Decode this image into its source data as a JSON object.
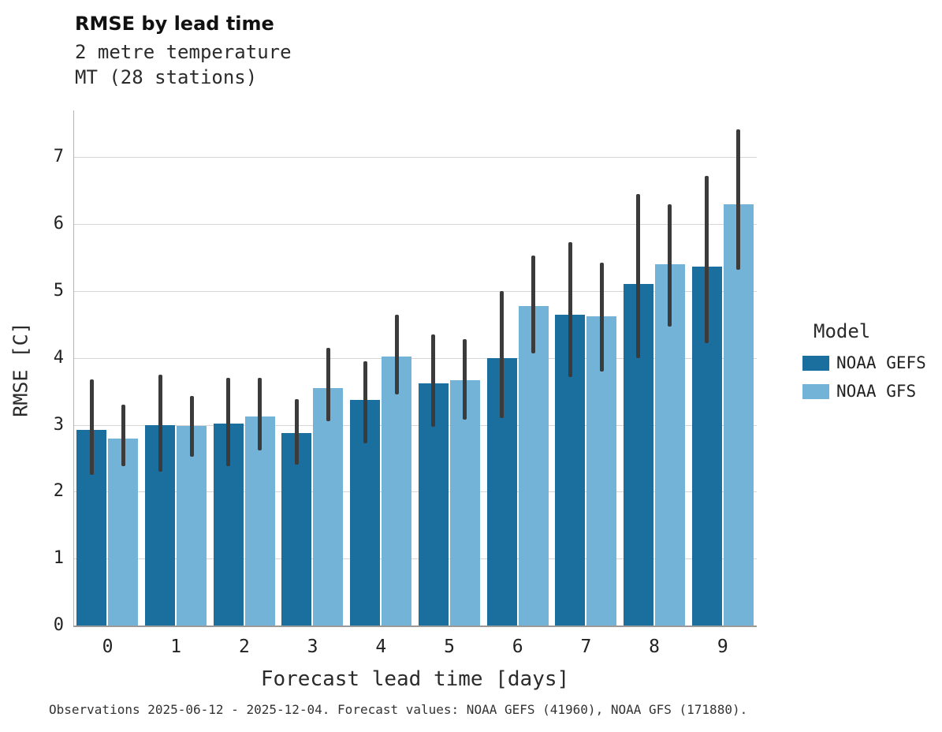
{
  "header": {
    "title": "RMSE by lead time",
    "subtitle1": "2 metre temperature",
    "subtitle2": "MT (28 stations)"
  },
  "legend": {
    "title": "Model",
    "entries": [
      {
        "label": "NOAA GEFS",
        "color": "#1b6f9e"
      },
      {
        "label": "NOAA GFS",
        "color": "#74b3d8"
      }
    ]
  },
  "footer": {
    "caption": "Observations 2025-06-12 - 2025-12-04. Forecast values: NOAA GEFS (41960), NOAA GFS (171880)."
  },
  "chart_data": {
    "type": "bar",
    "title": "RMSE by lead time",
    "subtitle": "2 metre temperature, MT (28 stations)",
    "xlabel": "Forecast lead time [days]",
    "ylabel": "RMSE [C]",
    "categories": [
      "0",
      "1",
      "2",
      "3",
      "4",
      "5",
      "6",
      "7",
      "8",
      "9"
    ],
    "ylim": [
      0,
      7.7
    ],
    "yticks": [
      0,
      1,
      2,
      3,
      4,
      5,
      6,
      7
    ],
    "grid": "horizontal",
    "legend_position": "right",
    "error_bar_color": "#3b3b3b",
    "series": [
      {
        "name": "NOAA GEFS",
        "color": "#1b6f9e",
        "values": [
          2.93,
          3.0,
          3.02,
          2.88,
          3.37,
          3.62,
          4.0,
          4.65,
          5.1,
          5.37
        ],
        "err_low": [
          2.25,
          2.3,
          2.38,
          2.4,
          2.72,
          2.97,
          3.1,
          3.72,
          4.0,
          4.22
        ],
        "err_high": [
          3.68,
          3.75,
          3.7,
          3.38,
          3.95,
          4.35,
          5.0,
          5.73,
          6.45,
          6.72
        ]
      },
      {
        "name": "NOAA GFS",
        "color": "#74b3d8",
        "values": [
          2.8,
          2.98,
          3.13,
          3.55,
          4.02,
          3.67,
          4.78,
          4.62,
          5.4,
          6.3
        ],
        "err_low": [
          2.38,
          2.52,
          2.62,
          3.05,
          3.45,
          3.08,
          4.07,
          3.8,
          4.47,
          5.32
        ],
        "err_high": [
          3.3,
          3.43,
          3.7,
          4.15,
          4.65,
          4.28,
          5.53,
          5.43,
          6.3,
          7.42
        ]
      }
    ]
  }
}
